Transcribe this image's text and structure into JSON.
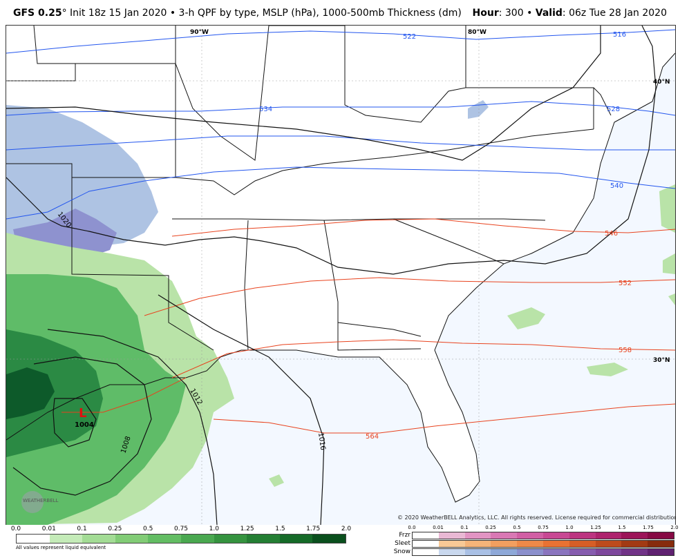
{
  "header": {
    "model": "GFS 0.25",
    "degree": "°",
    "description": "Init 18z 15 Jan 2020 • 3-h QPF by type, MSLP (hPa), 1000-500mb Thickness (dm)",
    "hour_label": "Hour",
    "hour_value": ": 300 • ",
    "valid_label": "Valid",
    "valid_value": ": 06z Tue 28 Jan 2020"
  },
  "map": {
    "grid_labels": {
      "lon90": "90°W",
      "lon80": "80°W",
      "lat40": "40°N",
      "lat30": "30°N"
    },
    "low_center": {
      "symbol": "L",
      "pressure": "1004"
    },
    "isobars": [
      "1020",
      "1016",
      "1012",
      "1008"
    ],
    "thickness_blue": [
      "522",
      "516",
      "534",
      "528",
      "540"
    ],
    "thickness_red": [
      "546",
      "552",
      "558",
      "564"
    ],
    "colors": {
      "ocean": "#f3f8ff",
      "snow": "#aec3e3",
      "snow_heavy": "#8e92cf",
      "rain_light": "#b9e3a8",
      "rain_mod": "#5fbc68",
      "rain_heavy": "#2b8a44",
      "rain_xheavy": "#0d5a2a",
      "thick_blue": "#2255ee",
      "thick_red": "#e8421d"
    }
  },
  "copyright": "© 2020 WeatherBELL Analytics, LLC. All rights reserved. License required for commercial distribution.",
  "watermark": "WEATHERBELL",
  "legend": {
    "rain_ticks": [
      "0.0",
      "0.01",
      "0.1",
      "0.25",
      "0.5",
      "0.75",
      "1.0",
      "1.25",
      "1.5",
      "1.75",
      "2.0"
    ],
    "rain_colors": [
      "#ffffff",
      "#c4ebb8",
      "#a3dc95",
      "#82cc76",
      "#63bd63",
      "#4aa850",
      "#35933f",
      "#247e33",
      "#156a28",
      "#0a4f1d"
    ],
    "note": "All values represent liquid equivalent",
    "ptype_ticks": [
      "0.0",
      "0.01",
      "0.1",
      "0.25",
      "0.5",
      "0.75",
      "1.0",
      "1.25",
      "1.5",
      "1.75",
      "2.0"
    ],
    "ptype_rows": [
      {
        "label": "Frzr",
        "colors": [
          "#ffffff",
          "#e9b8d4",
          "#e294c3",
          "#d978b4",
          "#d15fa4",
          "#c84893",
          "#bc3480",
          "#ae236d",
          "#9c1458",
          "#860a44"
        ]
      },
      {
        "label": "Sleet",
        "colors": [
          "#ffffff",
          "#f8c996",
          "#f5b479",
          "#f29f5f",
          "#ee8948",
          "#e97232",
          "#d65e26",
          "#bd4b1c",
          "#a23a13",
          "#862b0c"
        ]
      },
      {
        "label": "Snow",
        "colors": [
          "#ffffff",
          "#c9d8ee",
          "#a9c0e5",
          "#8ea8d8",
          "#8b8fcc",
          "#8a74be",
          "#865cae",
          "#7e479c",
          "#713387",
          "#5f2170"
        ]
      }
    ]
  }
}
